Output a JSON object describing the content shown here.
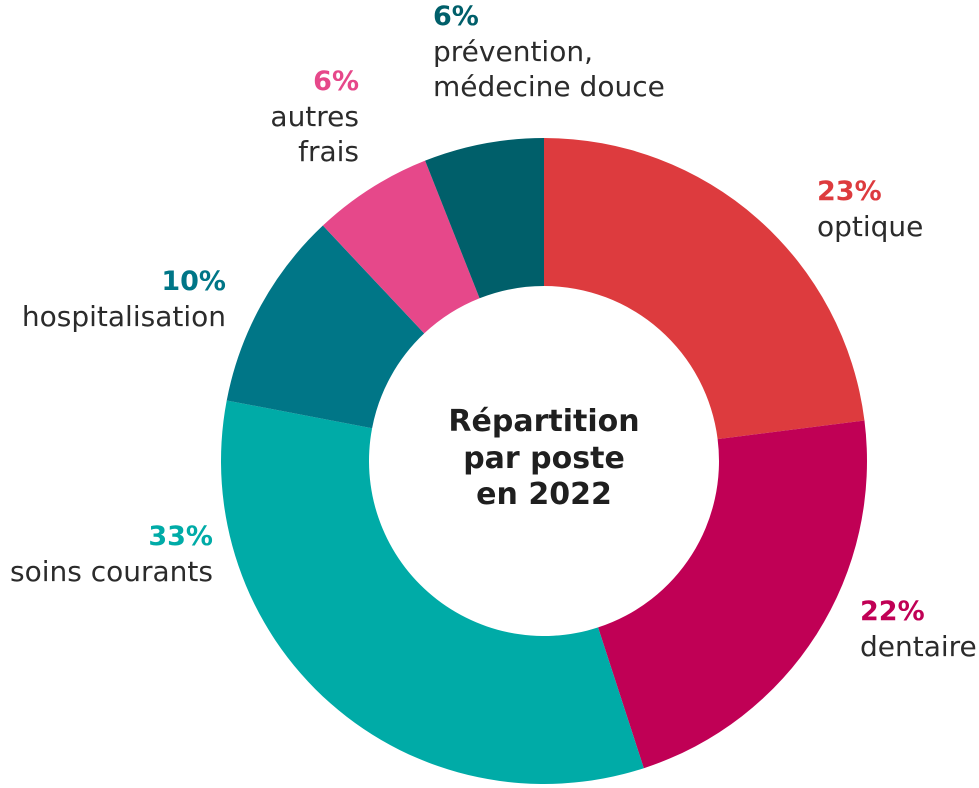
{
  "chart_data": {
    "type": "pie",
    "title_lines": [
      "Répartition",
      "par poste",
      "en 2022"
    ],
    "slices": [
      {
        "label_lines": [
          "optique"
        ],
        "percent_label": "23%",
        "value": 23,
        "color": "#dd3b3e"
      },
      {
        "label_lines": [
          "dentaire"
        ],
        "percent_label": "22%",
        "value": 22,
        "color": "#c00055"
      },
      {
        "label_lines": [
          "soins courants"
        ],
        "percent_label": "33%",
        "value": 33,
        "color": "#00aba7"
      },
      {
        "label_lines": [
          "hospitalisation"
        ],
        "percent_label": "10%",
        "value": 10,
        "color": "#007687"
      },
      {
        "label_lines": [
          "autres",
          "frais"
        ],
        "percent_label": "6%",
        "value": 6,
        "color": "#e6488a"
      },
      {
        "label_lines": [
          "prévention,",
          "médecine douce"
        ],
        "percent_label": "6%",
        "value": 6,
        "color": "#005f6a"
      }
    ]
  }
}
